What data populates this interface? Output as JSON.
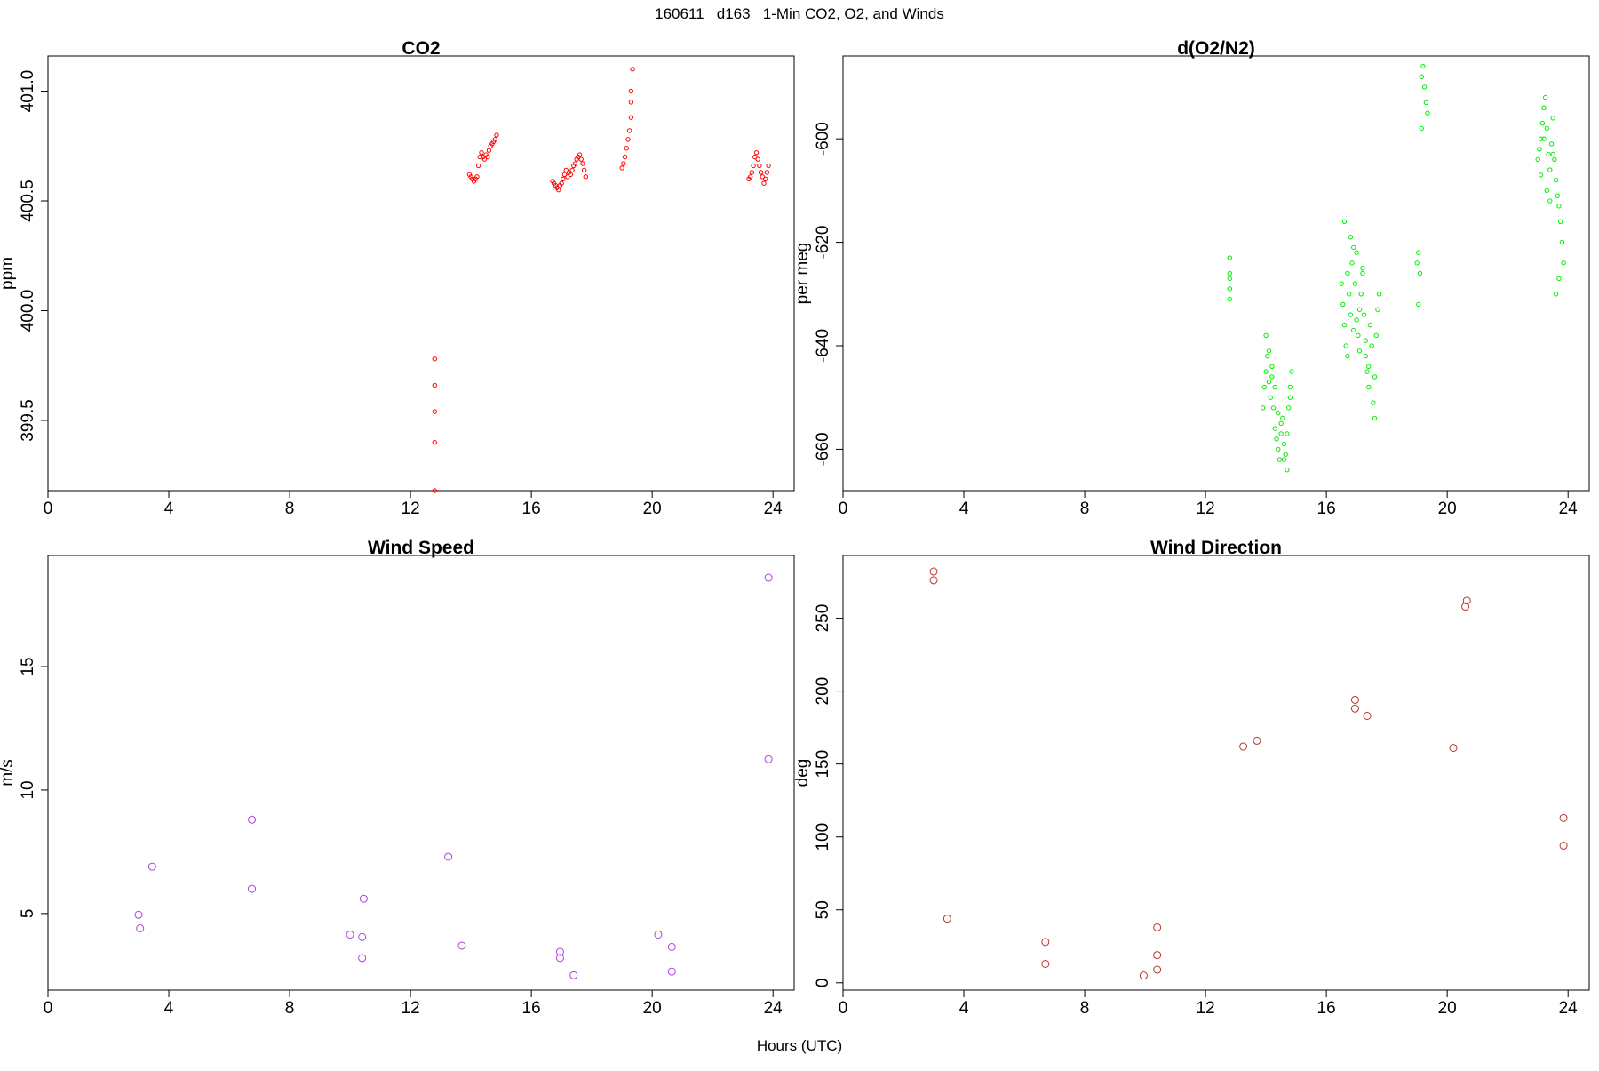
{
  "figure": {
    "title": "160611   d163   1-Min CO2, O2, and Winds",
    "xlabel": "Hours (UTC)"
  },
  "chart_data": [
    {
      "type": "scatter",
      "title": "CO2",
      "ylabel": "ppm",
      "xlabel": "",
      "xlim": [
        0,
        24.7
      ],
      "ylim": [
        399.18,
        401.16
      ],
      "xticks": [
        "0",
        "4",
        "8",
        "12",
        "16",
        "20",
        "24"
      ],
      "yticks": [
        "399.5",
        "400.0",
        "400.5",
        "401.0"
      ],
      "color": "#ff0000",
      "series": [
        {
          "x": [
            12.8,
            12.8,
            12.8,
            12.8,
            12.8,
            13.95,
            14.0,
            14.05,
            14.1,
            14.15,
            14.2,
            14.25,
            14.3,
            14.35,
            14.4,
            14.45,
            14.5,
            14.55,
            14.6,
            14.65,
            14.7,
            14.75,
            14.8,
            14.85,
            16.7,
            16.75,
            16.8,
            16.85,
            16.9,
            16.95,
            17.0,
            17.05,
            17.1,
            17.15,
            17.2,
            17.25,
            17.3,
            17.35,
            17.4,
            17.45,
            17.5,
            17.55,
            17.6,
            17.65,
            17.7,
            17.75,
            17.8,
            19.0,
            19.05,
            19.1,
            19.15,
            19.2,
            19.25,
            19.3,
            19.3,
            19.3,
            19.35,
            23.2,
            23.25,
            23.3,
            23.35,
            23.4,
            23.45,
            23.5,
            23.55,
            23.6,
            23.65,
            23.7,
            23.75,
            23.8,
            23.85
          ],
          "y": [
            399.78,
            399.66,
            399.54,
            399.4,
            399.18,
            400.62,
            400.61,
            400.6,
            400.59,
            400.6,
            400.61,
            400.66,
            400.7,
            400.72,
            400.7,
            400.69,
            400.71,
            400.7,
            400.73,
            400.75,
            400.76,
            400.77,
            400.78,
            400.8,
            400.59,
            400.58,
            400.57,
            400.56,
            400.55,
            400.57,
            400.58,
            400.6,
            400.62,
            400.64,
            400.61,
            400.63,
            400.62,
            400.64,
            400.66,
            400.67,
            400.69,
            400.7,
            400.71,
            400.69,
            400.67,
            400.64,
            400.61,
            400.65,
            400.67,
            400.7,
            400.74,
            400.78,
            400.82,
            400.88,
            400.95,
            401.0,
            401.1,
            400.6,
            400.61,
            400.63,
            400.66,
            400.7,
            400.72,
            400.69,
            400.66,
            400.63,
            400.61,
            400.58,
            400.6,
            400.63,
            400.66
          ]
        }
      ]
    },
    {
      "type": "scatter",
      "title": "d(O2/N2)",
      "ylabel": "per meg",
      "xlabel": "",
      "xlim": [
        0,
        24.7
      ],
      "ylim": [
        -668,
        -584
      ],
      "xticks": [
        "0",
        "4",
        "8",
        "12",
        "16",
        "20",
        "24"
      ],
      "yticks": [
        "-660",
        "-640",
        "-620",
        "-600"
      ],
      "color": "#00ee00",
      "series": [
        {
          "x": [
            12.8,
            12.8,
            12.8,
            12.8,
            12.8,
            13.9,
            13.95,
            14.0,
            14.05,
            14.1,
            14.15,
            14.2,
            14.25,
            14.3,
            14.35,
            14.4,
            14.45,
            14.5,
            14.55,
            14.6,
            14.65,
            14.7,
            14.75,
            14.8,
            14.85,
            14.1,
            14.3,
            14.5,
            14.7,
            14.0,
            14.2,
            14.4,
            14.6,
            14.8,
            16.5,
            16.55,
            16.6,
            16.65,
            16.7,
            16.75,
            16.8,
            16.85,
            16.9,
            16.95,
            17.0,
            17.05,
            17.1,
            17.15,
            17.2,
            17.25,
            17.3,
            17.35,
            17.4,
            17.45,
            17.5,
            17.55,
            17.6,
            17.65,
            17.7,
            17.75,
            16.6,
            16.8,
            17.0,
            17.2,
            17.4,
            17.6,
            16.7,
            16.9,
            17.1,
            17.3,
            19.0,
            19.05,
            19.1,
            19.15,
            19.2,
            19.25,
            19.3,
            19.35,
            19.05,
            19.15,
            23.0,
            23.05,
            23.1,
            23.15,
            23.2,
            23.25,
            23.3,
            23.35,
            23.4,
            23.45,
            23.5,
            23.55,
            23.6,
            23.65,
            23.7,
            23.75,
            23.8,
            23.85,
            23.1,
            23.3,
            23.5,
            23.7,
            23.2,
            23.4,
            23.6
          ],
          "y": [
            -623,
            -626,
            -629,
            -627,
            -631,
            -652,
            -648,
            -645,
            -642,
            -647,
            -650,
            -644,
            -652,
            -656,
            -658,
            -660,
            -662,
            -657,
            -654,
            -659,
            -661,
            -664,
            -652,
            -648,
            -645,
            -641,
            -648,
            -655,
            -657,
            -638,
            -646,
            -653,
            -662,
            -650,
            -628,
            -632,
            -636,
            -640,
            -626,
            -630,
            -634,
            -624,
            -621,
            -628,
            -635,
            -638,
            -641,
            -630,
            -626,
            -634,
            -642,
            -645,
            -648,
            -636,
            -640,
            -651,
            -654,
            -638,
            -633,
            -630,
            -616,
            -619,
            -622,
            -625,
            -644,
            -646,
            -642,
            -637,
            -633,
            -639,
            -624,
            -622,
            -626,
            -588,
            -586,
            -590,
            -593,
            -595,
            -632,
            -598,
            -604,
            -602,
            -600,
            -597,
            -594,
            -592,
            -598,
            -603,
            -606,
            -601,
            -596,
            -604,
            -608,
            -611,
            -613,
            -616,
            -620,
            -624,
            -607,
            -610,
            -603,
            -627,
            -600,
            -612,
            -630
          ]
        }
      ]
    },
    {
      "type": "scatter",
      "title": "Wind Speed",
      "ylabel": "m/s",
      "xlabel": "",
      "xlim": [
        0,
        24.7
      ],
      "ylim": [
        1.9,
        19.5
      ],
      "xticks": [
        "0",
        "4",
        "8",
        "12",
        "16",
        "20",
        "24"
      ],
      "yticks": [
        "5",
        "10",
        "15"
      ],
      "color": "#b03fe6",
      "series": [
        {
          "x": [
            3.0,
            3.05,
            3.45,
            6.75,
            6.75,
            10.0,
            10.4,
            10.4,
            10.45,
            13.25,
            13.7,
            16.95,
            16.95,
            17.4,
            20.2,
            20.65,
            20.65,
            23.85,
            23.85
          ],
          "y": [
            4.95,
            4.4,
            6.9,
            8.8,
            6.0,
            4.15,
            4.05,
            3.2,
            5.6,
            7.3,
            3.7,
            3.45,
            3.2,
            2.5,
            4.15,
            3.65,
            2.65,
            18.6,
            11.25
          ]
        }
      ]
    },
    {
      "type": "scatter",
      "title": "Wind Direction",
      "ylabel": "deg",
      "xlabel": "",
      "xlim": [
        0,
        24.7
      ],
      "ylim": [
        -5,
        293
      ],
      "xticks": [
        "0",
        "4",
        "8",
        "12",
        "16",
        "20",
        "24"
      ],
      "yticks": [
        "0",
        "50",
        "100",
        "150",
        "200",
        "250"
      ],
      "color": "#b5362d",
      "series": [
        {
          "x": [
            3.0,
            3.0,
            3.45,
            6.7,
            6.7,
            9.95,
            10.4,
            10.4,
            10.4,
            13.25,
            13.7,
            16.95,
            16.95,
            17.35,
            20.2,
            20.6,
            20.65,
            23.85,
            23.85
          ],
          "y": [
            282,
            276,
            44,
            28,
            13,
            5,
            19,
            9,
            38,
            162,
            166,
            194,
            188,
            183,
            161,
            258,
            262,
            113,
            94
          ]
        }
      ]
    }
  ]
}
